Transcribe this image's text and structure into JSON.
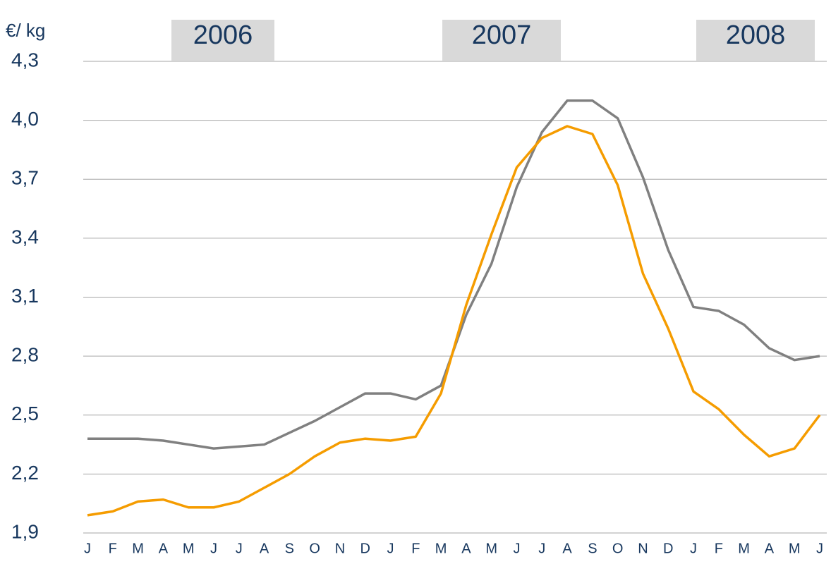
{
  "chart_data": {
    "type": "line",
    "y_label": "€/ kg",
    "annotations": [
      "2006",
      "2007",
      "2008"
    ],
    "categories": [
      "J",
      "F",
      "M",
      "A",
      "M",
      "J",
      "J",
      "A",
      "S",
      "O",
      "N",
      "D",
      "J",
      "F",
      "M",
      "A",
      "M",
      "J",
      "J",
      "A",
      "S",
      "O",
      "N",
      "D",
      "J",
      "F",
      "M",
      "A",
      "M",
      "J"
    ],
    "series": [
      {
        "color": "#808080",
        "values": [
          2.38,
          2.38,
          2.38,
          2.37,
          2.35,
          2.33,
          2.34,
          2.35,
          2.41,
          2.47,
          2.54,
          2.61,
          2.61,
          2.58,
          2.65,
          3.01,
          3.27,
          3.66,
          3.94,
          4.1,
          4.1,
          4.01,
          3.71,
          3.34,
          3.05,
          3.03,
          2.96,
          2.84,
          2.78,
          2.8
        ]
      },
      {
        "color": "#f59c00",
        "values": [
          1.99,
          2.01,
          2.06,
          2.07,
          2.03,
          2.03,
          2.06,
          2.13,
          2.2,
          2.29,
          2.36,
          2.38,
          2.37,
          2.39,
          2.61,
          3.06,
          3.42,
          3.76,
          3.91,
          3.97,
          3.93,
          3.67,
          3.22,
          2.94,
          2.62,
          2.53,
          2.4,
          2.29,
          2.33,
          2.5
        ]
      }
    ],
    "ylim": [
      1.9,
      4.3
    ],
    "yticks": [
      {
        "value": 1.9,
        "label": "1,9"
      },
      {
        "value": 2.2,
        "label": "2,2"
      },
      {
        "value": 2.5,
        "label": "2,5"
      },
      {
        "value": 2.8,
        "label": "2,8"
      },
      {
        "value": 3.1,
        "label": "3,1"
      },
      {
        "value": 3.4,
        "label": "3,4"
      },
      {
        "value": 3.7,
        "label": "3,7"
      },
      {
        "value": 4.0,
        "label": "4,0"
      },
      {
        "value": 4.3,
        "label": "4,3"
      }
    ],
    "grid": true
  }
}
